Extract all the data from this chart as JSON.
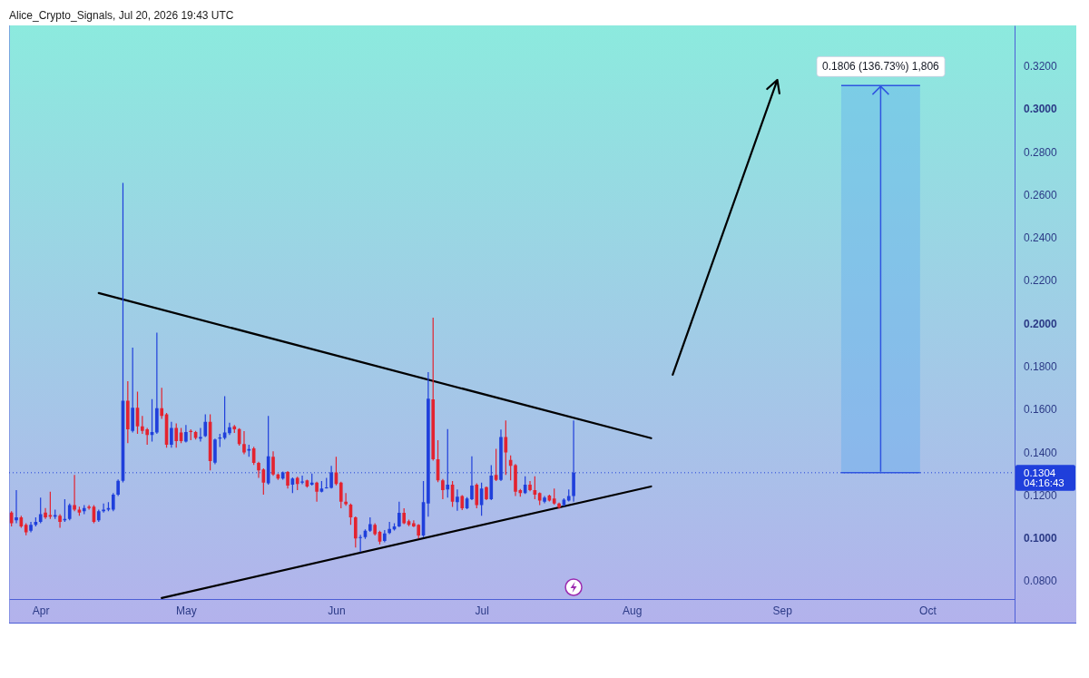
{
  "chart_data": {
    "type": "candlestick",
    "x": [
      "2026-03-26",
      "2026-03-27",
      "2026-03-28",
      "2026-03-29",
      "2026-03-30",
      "2026-03-31",
      "2026-04-01",
      "2026-04-02",
      "2026-04-03",
      "2026-04-04",
      "2026-04-05",
      "2026-04-06",
      "2026-04-07",
      "2026-04-08",
      "2026-04-09",
      "2026-04-10",
      "2026-04-11",
      "2026-04-12",
      "2026-04-13",
      "2026-04-14",
      "2026-04-15",
      "2026-04-16",
      "2026-04-17",
      "2026-04-18",
      "2026-04-19",
      "2026-04-20",
      "2026-04-21",
      "2026-04-22",
      "2026-04-23",
      "2026-04-24",
      "2026-04-25",
      "2026-04-26",
      "2026-04-27",
      "2026-04-28",
      "2026-04-29",
      "2026-04-30",
      "2026-05-01",
      "2026-05-02",
      "2026-05-03",
      "2026-05-04",
      "2026-05-05",
      "2026-05-06",
      "2026-05-07",
      "2026-05-08",
      "2026-05-09",
      "2026-05-10",
      "2026-05-11",
      "2026-05-12",
      "2026-05-13",
      "2026-05-14",
      "2026-05-15",
      "2026-05-16",
      "2026-05-17",
      "2026-05-18",
      "2026-05-19",
      "2026-05-20",
      "2026-05-21",
      "2026-05-22",
      "2026-05-23",
      "2026-05-24",
      "2026-05-25",
      "2026-05-26",
      "2026-05-27",
      "2026-05-28",
      "2026-05-29",
      "2026-05-30",
      "2026-05-31",
      "2026-06-01",
      "2026-06-02",
      "2026-06-03",
      "2026-06-04",
      "2026-06-05",
      "2026-06-06",
      "2026-06-07",
      "2026-06-08",
      "2026-06-09",
      "2026-06-10",
      "2026-06-11",
      "2026-06-12",
      "2026-06-13",
      "2026-06-14",
      "2026-06-15",
      "2026-06-16",
      "2026-06-17",
      "2026-06-18",
      "2026-06-19",
      "2026-06-20",
      "2026-06-21",
      "2026-06-22",
      "2026-06-23",
      "2026-06-24",
      "2026-06-25",
      "2026-06-26",
      "2026-06-27",
      "2026-06-28",
      "2026-06-29",
      "2026-06-30",
      "2026-07-01",
      "2026-07-02",
      "2026-07-03",
      "2026-07-04",
      "2026-07-05",
      "2026-07-06",
      "2026-07-07",
      "2026-07-08",
      "2026-07-09",
      "2026-07-10",
      "2026-07-11",
      "2026-07-12",
      "2026-07-13",
      "2026-07-14",
      "2026-07-15",
      "2026-07-16",
      "2026-07-17",
      "2026-07-18",
      "2026-07-19",
      "2026-07-20"
    ],
    "ohlc": [
      [
        0.1118,
        0.1125,
        0.1054,
        0.1068
      ],
      [
        0.1082,
        0.1223,
        0.1068,
        0.1096
      ],
      [
        0.1096,
        0.1103,
        0.1047,
        0.1054
      ],
      [
        0.1061,
        0.1068,
        0.1012,
        0.1026
      ],
      [
        0.1033,
        0.1075,
        0.1026,
        0.1061
      ],
      [
        0.1061,
        0.1096,
        0.1054,
        0.1075
      ],
      [
        0.1075,
        0.1188,
        0.1068,
        0.1111
      ],
      [
        0.1118,
        0.1139,
        0.1089,
        0.1096
      ],
      [
        0.1106,
        0.1216,
        0.1089,
        0.1099
      ],
      [
        0.1099,
        0.1132,
        0.1089,
        0.1106
      ],
      [
        0.1103,
        0.1111,
        0.1047,
        0.1075
      ],
      [
        0.1082,
        0.1181,
        0.1075,
        0.1089
      ],
      [
        0.1089,
        0.116,
        0.1082,
        0.1153
      ],
      [
        0.1153,
        0.1294,
        0.1125,
        0.1132
      ],
      [
        0.1132,
        0.1146,
        0.1103,
        0.1118
      ],
      [
        0.1125,
        0.1153,
        0.1111,
        0.1139
      ],
      [
        0.1146,
        0.1153,
        0.1132,
        0.1139
      ],
      [
        0.1146,
        0.1153,
        0.1068,
        0.1075
      ],
      [
        0.1082,
        0.1132,
        0.1075,
        0.1125
      ],
      [
        0.1125,
        0.116,
        0.1118,
        0.1132
      ],
      [
        0.1132,
        0.1167,
        0.1125,
        0.1139
      ],
      [
        0.1132,
        0.1209,
        0.1125,
        0.1202
      ],
      [
        0.1202,
        0.1273,
        0.1195,
        0.1266
      ],
      [
        0.1266,
        0.2656,
        0.1259,
        0.164
      ],
      [
        0.164,
        0.1731,
        0.1442,
        0.1506
      ],
      [
        0.1499,
        0.1887,
        0.1492,
        0.1607
      ],
      [
        0.1607,
        0.1682,
        0.1485,
        0.152
      ],
      [
        0.152,
        0.1569,
        0.1485,
        0.1499
      ],
      [
        0.1506,
        0.1513,
        0.1435,
        0.148
      ],
      [
        0.148,
        0.1647,
        0.1449,
        0.1494
      ],
      [
        0.1492,
        0.1957,
        0.1485,
        0.1605
      ],
      [
        0.1605,
        0.17,
        0.1555,
        0.1569
      ],
      [
        0.1576,
        0.1583,
        0.1421,
        0.1435
      ],
      [
        0.1435,
        0.1541,
        0.1421,
        0.1513
      ],
      [
        0.1513,
        0.1534,
        0.1421,
        0.1452
      ],
      [
        0.1492,
        0.1513,
        0.1442,
        0.1452
      ],
      [
        0.1449,
        0.1527,
        0.1445,
        0.1494
      ],
      [
        0.1499,
        0.1506,
        0.1456,
        0.1494
      ],
      [
        0.1494,
        0.1499,
        0.1459,
        0.1466
      ],
      [
        0.1463,
        0.1513,
        0.1449,
        0.147
      ],
      [
        0.1475,
        0.1576,
        0.147,
        0.1541
      ],
      [
        0.1541,
        0.1576,
        0.1315,
        0.1358
      ],
      [
        0.1351,
        0.1463,
        0.1344,
        0.1459
      ],
      [
        0.1463,
        0.1485,
        0.1424,
        0.1468
      ],
      [
        0.1466,
        0.1661,
        0.1459,
        0.1492
      ],
      [
        0.1489,
        0.1537,
        0.148,
        0.1516
      ],
      [
        0.152,
        0.1527,
        0.149,
        0.1506
      ],
      [
        0.1508,
        0.1512,
        0.143,
        0.1438
      ],
      [
        0.1438,
        0.1498,
        0.139,
        0.1399
      ],
      [
        0.1407,
        0.1435,
        0.1378,
        0.1414
      ],
      [
        0.1418,
        0.1425,
        0.134,
        0.135
      ],
      [
        0.135,
        0.1355,
        0.128,
        0.1315
      ],
      [
        0.1319,
        0.1325,
        0.1202,
        0.1258
      ],
      [
        0.1255,
        0.1569,
        0.1248,
        0.1381
      ],
      [
        0.1378,
        0.1404,
        0.129,
        0.1296
      ],
      [
        0.1296,
        0.13,
        0.127,
        0.1277
      ],
      [
        0.1277,
        0.131,
        0.1272,
        0.1305
      ],
      [
        0.1308,
        0.1312,
        0.123,
        0.1244
      ],
      [
        0.1248,
        0.1282,
        0.1209,
        0.1277
      ],
      [
        0.128,
        0.1285,
        0.1223,
        0.1251
      ],
      [
        0.1258,
        0.1291,
        0.125,
        0.1263
      ],
      [
        0.1268,
        0.1272,
        0.1235,
        0.124
      ],
      [
        0.1248,
        0.13,
        0.1244,
        0.1258
      ],
      [
        0.1258,
        0.1262,
        0.1169,
        0.1216
      ],
      [
        0.1216,
        0.1265,
        0.1212,
        0.123
      ],
      [
        0.1232,
        0.128,
        0.123,
        0.1236
      ],
      [
        0.1234,
        0.1336,
        0.123,
        0.1305
      ],
      [
        0.1305,
        0.1378,
        0.1245,
        0.1251
      ],
      [
        0.1258,
        0.1262,
        0.1138,
        0.1169
      ],
      [
        0.1169,
        0.1209,
        0.115,
        0.1157
      ],
      [
        0.1155,
        0.116,
        0.1061,
        0.1096
      ],
      [
        0.1096,
        0.11,
        0.0955,
        0.0997
      ],
      [
        0.1,
        0.1014,
        0.0934,
        0.1004
      ],
      [
        0.1004,
        0.104,
        0.0995,
        0.1033
      ],
      [
        0.1033,
        0.1096,
        0.1028,
        0.1064
      ],
      [
        0.1061,
        0.1068,
        0.1011,
        0.1018
      ],
      [
        0.1028,
        0.1033,
        0.097,
        0.0983
      ],
      [
        0.0986,
        0.1037,
        0.098,
        0.1021
      ],
      [
        0.1023,
        0.1075,
        0.1018,
        0.1042
      ],
      [
        0.104,
        0.1068,
        0.1035,
        0.1054
      ],
      [
        0.1054,
        0.1169,
        0.105,
        0.1117
      ],
      [
        0.1117,
        0.1138,
        0.1064,
        0.1068
      ],
      [
        0.1078,
        0.1085,
        0.1055,
        0.1061
      ],
      [
        0.1068,
        0.1082,
        0.105,
        0.1054
      ],
      [
        0.1061,
        0.1064,
        0.0997,
        0.1011
      ],
      [
        0.1011,
        0.1265,
        0.1004,
        0.1167
      ],
      [
        0.116,
        0.1773,
        0.1099,
        0.1649
      ],
      [
        0.1646,
        0.2027,
        0.136,
        0.1367
      ],
      [
        0.1367,
        0.1456,
        0.126,
        0.1268
      ],
      [
        0.1268,
        0.1275,
        0.1181,
        0.1223
      ],
      [
        0.1226,
        0.1508,
        0.1188,
        0.1248
      ],
      [
        0.1248,
        0.1265,
        0.1145,
        0.1169
      ],
      [
        0.1167,
        0.1226,
        0.1127,
        0.1192
      ],
      [
        0.1195,
        0.12,
        0.113,
        0.1138
      ],
      [
        0.1138,
        0.119,
        0.1134,
        0.1184
      ],
      [
        0.1181,
        0.1381,
        0.1176,
        0.1244
      ],
      [
        0.1248,
        0.1255,
        0.1138,
        0.1153
      ],
      [
        0.1153,
        0.1258,
        0.1103,
        0.123
      ],
      [
        0.1237,
        0.124,
        0.1176,
        0.1181
      ],
      [
        0.1181,
        0.1339,
        0.1176,
        0.1291
      ],
      [
        0.1294,
        0.1416,
        0.1265,
        0.127
      ],
      [
        0.127,
        0.1505,
        0.1265,
        0.147
      ],
      [
        0.147,
        0.1548,
        0.1294,
        0.1399
      ],
      [
        0.1364,
        0.1385,
        0.1268,
        0.1336
      ],
      [
        0.1339,
        0.1345,
        0.1195,
        0.1216
      ],
      [
        0.1223,
        0.1228,
        0.1192,
        0.1209
      ],
      [
        0.1209,
        0.1287,
        0.1205,
        0.1248
      ],
      [
        0.1248,
        0.1265,
        0.1218,
        0.1223
      ],
      [
        0.1223,
        0.1287,
        0.1181,
        0.1202
      ],
      [
        0.1209,
        0.1212,
        0.1153,
        0.1174
      ],
      [
        0.1169,
        0.1195,
        0.1162,
        0.1188
      ],
      [
        0.1198,
        0.1202,
        0.117,
        0.1174
      ],
      [
        0.1184,
        0.123,
        0.1155,
        0.116
      ],
      [
        0.116,
        0.1165,
        0.1136,
        0.1141
      ],
      [
        0.1153,
        0.1185,
        0.1148,
        0.1178
      ],
      [
        0.1174,
        0.1226,
        0.117,
        0.1195
      ],
      [
        0.1195,
        0.1548,
        0.1169,
        0.1304
      ]
    ],
    "colors": [
      "#e3232f",
      "#1f3fdb",
      "#e3232f",
      "#e3232f",
      "#1f3fdb",
      "#1f3fdb",
      "#1f3fdb",
      "#e3232f",
      "#e3232f",
      "#1f3fdb",
      "#e3232f",
      "#1f3fdb",
      "#1f3fdb",
      "#e3232f",
      "#e3232f",
      "#1f3fdb",
      "#e3232f",
      "#e3232f",
      "#1f3fdb",
      "#1f3fdb",
      "#1f3fdb",
      "#1f3fdb",
      "#1f3fdb",
      "#1f3fdb",
      "#e3232f",
      "#1f3fdb",
      "#e3232f",
      "#e3232f",
      "#e3232f",
      "#1f3fdb",
      "#1f3fdb",
      "#e3232f",
      "#e3232f",
      "#1f3fdb",
      "#e3232f",
      "#e3232f",
      "#1f3fdb",
      "#e3232f",
      "#e3232f",
      "#1f3fdb",
      "#1f3fdb",
      "#e3232f",
      "#1f3fdb",
      "#1f3fdb",
      "#1f3fdb",
      "#1f3fdb",
      "#e3232f",
      "#e3232f",
      "#e3232f",
      "#1f3fdb",
      "#e3232f",
      "#e3232f",
      "#e3232f",
      "#1f3fdb",
      "#e3232f",
      "#e3232f",
      "#1f3fdb",
      "#e3232f",
      "#1f3fdb",
      "#e3232f",
      "#1f3fdb",
      "#e3232f",
      "#1f3fdb",
      "#e3232f",
      "#1f3fdb",
      "#1f3fdb",
      "#1f3fdb",
      "#e3232f",
      "#e3232f",
      "#e3232f",
      "#e3232f",
      "#e3232f",
      "#1f3fdb",
      "#1f3fdb",
      "#1f3fdb",
      "#e3232f",
      "#e3232f",
      "#1f3fdb",
      "#1f3fdb",
      "#1f3fdb",
      "#1f3fdb",
      "#e3232f",
      "#e3232f",
      "#e3232f",
      "#e3232f",
      "#1f3fdb",
      "#1f3fdb",
      "#e3232f",
      "#e3232f",
      "#e3232f",
      "#1f3fdb",
      "#e3232f",
      "#1f3fdb",
      "#e3232f",
      "#1f3fdb",
      "#1f3fdb",
      "#e3232f",
      "#1f3fdb",
      "#e3232f",
      "#1f3fdb",
      "#e3232f",
      "#1f3fdb",
      "#e3232f",
      "#e3232f",
      "#e3232f",
      "#e3232f",
      "#1f3fdb",
      "#e3232f",
      "#e3232f",
      "#e3232f",
      "#1f3fdb",
      "#e3232f",
      "#e3232f",
      "#e3232f",
      "#1f3fdb",
      "#1f3fdb",
      "#1f3fdb"
    ],
    "series": [
      {
        "type": "line",
        "x": [
          "2026-04-13",
          "2026-08-05"
        ],
        "values": [
          0.2142,
          0.1465
        ],
        "color": "#000000"
      },
      {
        "type": "line",
        "x": [
          "2026-04-26",
          "2026-08-05"
        ],
        "values": [
          0.072,
          0.124
        ],
        "color": "#000000"
      }
    ],
    "xlim": [
      "2026-03-25T12:00",
      "2026-10-19"
    ],
    "xticks": [
      {
        "value": "2026-04-01",
        "label": "Apr"
      },
      {
        "value": "2026-05-01",
        "label": "May"
      },
      {
        "value": "2026-06-01",
        "label": "Jun"
      },
      {
        "value": "2026-07-01",
        "label": "Jul"
      },
      {
        "value": "2026-08-01",
        "label": "Aug"
      },
      {
        "value": "2026-09-01",
        "label": "Sep"
      },
      {
        "value": "2026-10-01",
        "label": "Oct"
      }
    ],
    "ylim": [
      0.0715,
      0.339
    ],
    "yticks": [
      {
        "value": 0.08,
        "label": "0.0800"
      },
      {
        "value": 0.1,
        "label": "0.1000"
      },
      {
        "value": 0.12,
        "label": "0.1200"
      },
      {
        "value": 0.14,
        "label": "0.1400"
      },
      {
        "value": 0.16,
        "label": "0.1600"
      },
      {
        "value": 0.18,
        "label": "0.1800"
      },
      {
        "value": 0.2,
        "label": "0.2000"
      },
      {
        "value": 0.22,
        "label": "0.2200"
      },
      {
        "value": 0.24,
        "label": "0.2400"
      },
      {
        "value": 0.26,
        "label": "0.2600"
      },
      {
        "value": 0.28,
        "label": "0.2800"
      },
      {
        "value": 0.3,
        "label": "0.3000"
      },
      {
        "value": 0.32,
        "label": "0.3200"
      }
    ],
    "ref_lines": [
      {
        "axis": "y",
        "value": 0.1304,
        "label": "0.1304\n04:16:43",
        "color": "#1f3fdb",
        "line_style": "dotted"
      }
    ],
    "bands": [
      {
        "axis": "y",
        "from": 0.1304,
        "to": 0.311,
        "label": "0.1806 (136.73%) 1,806",
        "color": "#5aa8f0"
      }
    ],
    "annotations": [
      "Alice_Crypto_Signals, Jul 20, 2026 19:43 UTC"
    ]
  }
}
